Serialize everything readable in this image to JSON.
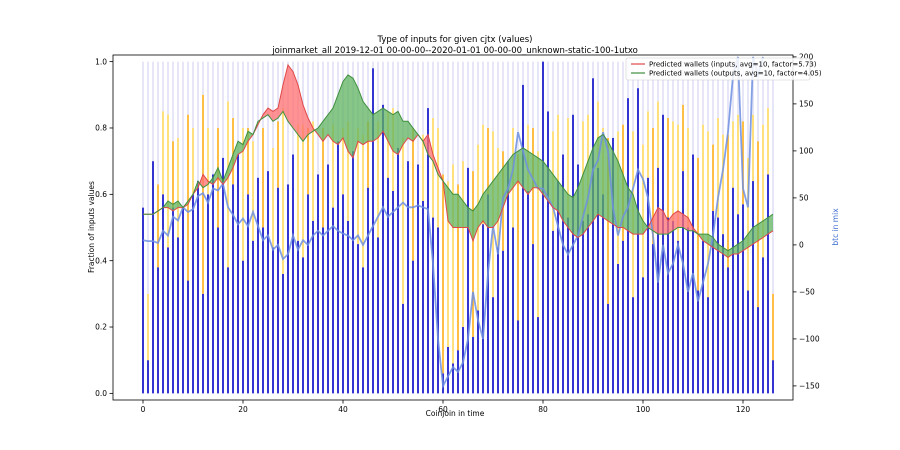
{
  "chart_data": {
    "type": "bar",
    "title": "Type of inputs for given cjtx (values)",
    "subtitle": "joinmarket_all 2019-12-01 00-00-00--2020-01-01 00-00-00_unknown-static-100-1utxo",
    "xlabel": "Coinjoin in time",
    "ylabel": "Fraction of inputs values",
    "y2label": "btc in mix",
    "xlim": [
      -6,
      130
    ],
    "ylim": [
      -0.02,
      1.02
    ],
    "y2lim": [
      -165,
      202
    ],
    "x_ticks": [
      "0",
      "20",
      "40",
      "60",
      "80",
      "100",
      "120"
    ],
    "y_ticks": [
      "0.0",
      "0.2",
      "0.4",
      "0.6",
      "0.8",
      "1.0"
    ],
    "y2_ticks": [
      "200",
      "150",
      "100",
      "50",
      "0",
      "−50",
      "−100",
      "−150"
    ],
    "grid": false,
    "legend_position": "top-right",
    "colors": {
      "fresh_bar": "#1010c8",
      "remix_bar": "#ffd54a",
      "remix_bar_dark": "#ffa500",
      "other_bar": "#c8c8f0",
      "inputs_line": "#e04848",
      "inputs_fill": "#ff6f6f",
      "outputs_line": "#3f8f3f",
      "outputs_fill": "#5fb35f",
      "mix_line": "#6f8fe0",
      "y2_axis": "#3f6fd0"
    },
    "legend": [
      {
        "label": "Predicted wallets (inputs, avg=10, factor=5.73)",
        "color": "#e04848"
      },
      {
        "label": "Predicted wallets (outputs, avg=10, factor=4.05)",
        "color": "#3f8f3f"
      }
    ],
    "bars_fresh_fraction": [
      0.56,
      0.1,
      0.7,
      0.38,
      0.6,
      0.44,
      0.56,
      0.47,
      0.56,
      0.34,
      0.6,
      0.64,
      0.3,
      0.6,
      0.66,
      0.5,
      0.71,
      0.38,
      0.63,
      0.72,
      0.4,
      0.6,
      0.46,
      0.65,
      0.5,
      0.67,
      0.44,
      0.62,
      0.36,
      0.63,
      0.72,
      0.46,
      0.41,
      0.6,
      0.52,
      0.66,
      0.5,
      0.69,
      0.56,
      0.76,
      0.6,
      0.52,
      0.73,
      0.45,
      0.38,
      0.62,
      0.98,
      0.47,
      0.87,
      0.65,
      0.61,
      0.74,
      0.27,
      0.7,
      0.4,
      0.69,
      0.58,
      0.86,
      0.53,
      0.5,
      0.06,
      0.14,
      0.09,
      0.13,
      0.2,
      0.68,
      0.17,
      0.25,
      0.51,
      0.6,
      0.29,
      0.44,
      0.43,
      0.7,
      0.5,
      0.22,
      0.93,
      0.61,
      0.45,
      0.23,
      1.0,
      0.85,
      0.49,
      0.64,
      0.72,
      0.53,
      0.84,
      0.69,
      0.52,
      0.54,
      0.95,
      0.68,
      0.6,
      0.27,
      0.77,
      0.39,
      0.46,
      0.89,
      0.29,
      0.92,
      0.35,
      0.65,
      0.45,
      0.68,
      0.84,
      0.53,
      0.52,
      0.46,
      0.67,
      0.5,
      0.72,
      0.31,
      0.46,
      0.29,
      0.55,
      0.53,
      0.48,
      0.38,
      0.62,
      0.54,
      0.57,
      0.31,
      0.64,
      0.26,
      0.41,
      0.66,
      0.1
    ],
    "bars_remix_fraction": [
      0.0,
      0.2,
      0.0,
      0.25,
      0.25,
      0.4,
      0.2,
      0.3,
      0.0,
      0.5,
      0.2,
      0.0,
      0.6,
      0.2,
      0.0,
      0.3,
      0.0,
      0.5,
      0.2,
      0.0,
      0.4,
      0.2,
      0.3,
      0.0,
      0.3,
      0.0,
      0.3,
      0.2,
      0.5,
      0.0,
      0.0,
      0.35,
      0.4,
      0.2,
      0.3,
      0.0,
      0.3,
      0.0,
      0.25,
      0.0,
      0.2,
      0.3,
      0.0,
      0.35,
      0.4,
      0.2,
      0.0,
      0.35,
      0.0,
      0.2,
      0.25,
      0.0,
      0.5,
      0.0,
      0.4,
      0.0,
      0.2,
      0.0,
      0.3,
      0.3,
      0.6,
      0.5,
      0.6,
      0.5,
      0.5,
      0.0,
      0.5,
      0.5,
      0.3,
      0.2,
      0.5,
      0.3,
      0.3,
      0.0,
      0.3,
      0.5,
      0.0,
      0.2,
      0.35,
      0.5,
      0.0,
      0.0,
      0.3,
      0.2,
      0.0,
      0.3,
      0.0,
      0.0,
      0.3,
      0.3,
      0.0,
      0.2,
      0.2,
      0.5,
      0.0,
      0.4,
      0.35,
      0.0,
      0.5,
      0.0,
      0.4,
      0.2,
      0.35,
      0.2,
      0.0,
      0.3,
      0.3,
      0.35,
      0.2,
      0.3,
      0.0,
      0.4,
      0.35,
      0.5,
      0.2,
      0.3,
      0.3,
      0.4,
      0.2,
      0.3,
      0.25,
      0.4,
      0.2,
      0.5,
      0.4,
      0.2,
      0.2
    ],
    "inputs_line": [
      0.54,
      0.54,
      0.54,
      0.55,
      0.56,
      0.56,
      0.55,
      0.56,
      0.56,
      0.57,
      0.6,
      0.62,
      0.66,
      0.64,
      0.63,
      0.65,
      0.63,
      0.65,
      0.68,
      0.72,
      0.73,
      0.76,
      0.78,
      0.81,
      0.84,
      0.86,
      0.85,
      0.86,
      0.93,
      0.99,
      0.97,
      0.93,
      0.87,
      0.83,
      0.8,
      0.78,
      0.76,
      0.78,
      0.76,
      0.75,
      0.77,
      0.73,
      0.71,
      0.76,
      0.75,
      0.76,
      0.76,
      0.77,
      0.79,
      0.76,
      0.73,
      0.72,
      0.75,
      0.77,
      0.76,
      0.78,
      0.76,
      0.78,
      0.72,
      0.68,
      0.64,
      0.52,
      0.5,
      0.5,
      0.5,
      0.5,
      0.46,
      0.5,
      0.52,
      0.5,
      0.5,
      0.52,
      0.56,
      0.6,
      0.62,
      0.64,
      0.62,
      0.6,
      0.62,
      0.62,
      0.6,
      0.58,
      0.56,
      0.55,
      0.52,
      0.5,
      0.48,
      0.47,
      0.48,
      0.5,
      0.52,
      0.54,
      0.53,
      0.52,
      0.51,
      0.5,
      0.5,
      0.49,
      0.48,
      0.48,
      0.48,
      0.5,
      0.53,
      0.56,
      0.55,
      0.52,
      0.54,
      0.55,
      0.54,
      0.53,
      0.5,
      0.48,
      0.46,
      0.45,
      0.44,
      0.43,
      0.42,
      0.41,
      0.42,
      0.42,
      0.43,
      0.44,
      0.45,
      0.46,
      0.47,
      0.48,
      0.49
    ],
    "outputs_line": [
      0.54,
      0.54,
      0.54,
      0.55,
      0.56,
      0.58,
      0.57,
      0.58,
      0.56,
      0.58,
      0.6,
      0.64,
      0.62,
      0.63,
      0.65,
      0.68,
      0.64,
      0.68,
      0.72,
      0.76,
      0.75,
      0.79,
      0.78,
      0.82,
      0.83,
      0.84,
      0.82,
      0.83,
      0.85,
      0.82,
      0.8,
      0.78,
      0.76,
      0.78,
      0.79,
      0.8,
      0.82,
      0.84,
      0.86,
      0.9,
      0.94,
      0.96,
      0.95,
      0.92,
      0.88,
      0.86,
      0.84,
      0.85,
      0.86,
      0.85,
      0.84,
      0.85,
      0.82,
      0.82,
      0.8,
      0.78,
      0.76,
      0.72,
      0.7,
      0.66,
      0.64,
      0.62,
      0.6,
      0.6,
      0.58,
      0.56,
      0.55,
      0.57,
      0.6,
      0.62,
      0.64,
      0.66,
      0.68,
      0.7,
      0.72,
      0.73,
      0.74,
      0.73,
      0.72,
      0.71,
      0.7,
      0.68,
      0.66,
      0.64,
      0.62,
      0.6,
      0.59,
      0.62,
      0.66,
      0.7,
      0.74,
      0.77,
      0.78,
      0.76,
      0.73,
      0.7,
      0.66,
      0.62,
      0.6,
      0.55,
      0.52,
      0.5,
      0.49,
      0.48,
      0.48,
      0.48,
      0.49,
      0.5,
      0.5,
      0.49,
      0.49,
      0.48,
      0.48,
      0.48,
      0.47,
      0.45,
      0.44,
      0.43,
      0.44,
      0.45,
      0.46,
      0.48,
      0.5,
      0.51,
      0.52,
      0.53,
      0.54
    ],
    "mix_line": [
      5,
      4,
      4,
      2,
      15,
      10,
      30,
      26,
      40,
      35,
      38,
      52,
      55,
      45,
      60,
      58,
      65,
      40,
      32,
      22,
      28,
      20,
      35,
      20,
      5,
      10,
      -5,
      0,
      -15,
      -10,
      10,
      -5,
      5,
      0,
      10,
      15,
      10,
      15,
      20,
      15,
      12,
      10,
      5,
      10,
      0,
      10,
      20,
      30,
      40,
      30,
      35,
      40,
      45,
      40,
      40,
      42,
      40,
      38,
      -20,
      -100,
      -150,
      -140,
      -130,
      -135,
      -125,
      -100,
      -50,
      -80,
      -100,
      -30,
      20,
      -10,
      50,
      60,
      80,
      120,
      100,
      80,
      70,
      60,
      60,
      50,
      40,
      20,
      0,
      -10,
      0,
      10,
      30,
      50,
      80,
      90,
      120,
      100,
      40,
      10,
      30,
      40,
      60,
      80,
      70,
      50,
      10,
      -40,
      0,
      -30,
      -20,
      0,
      -20,
      -50,
      -30,
      -60,
      -40,
      -20,
      10,
      50,
      80,
      120,
      180,
      200,
      60,
      40,
      200,
      180,
      200
    ]
  }
}
